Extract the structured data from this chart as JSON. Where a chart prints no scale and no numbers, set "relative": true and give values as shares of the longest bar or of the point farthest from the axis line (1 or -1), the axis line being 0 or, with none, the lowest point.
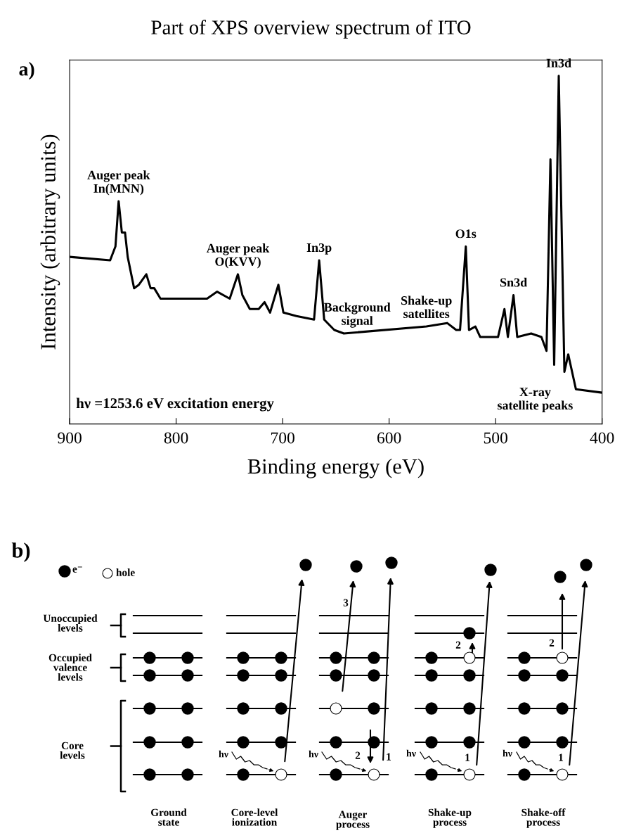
{
  "chart_data": [
    {
      "type": "line",
      "title": "Part of XPS overview spectrum of ITO",
      "xlabel": "Binding energy (eV)",
      "ylabel": "Intensity (arbitrary units)",
      "relative": true,
      "color": "#000000",
      "xlim": [
        900,
        400
      ],
      "xticks": [
        900,
        800,
        700,
        600,
        500,
        400
      ],
      "x": [
        900,
        862,
        857,
        854,
        851,
        848,
        845.5,
        839.5,
        835,
        828,
        824,
        820.6,
        814.7,
        784,
        771,
        761.5,
        749.7,
        742,
        737.8,
        730.8,
        722.5,
        717,
        711.8,
        704,
        699.3,
        687,
        670.5,
        665.7,
        661,
        651.5,
        642.5,
        565,
        545.5,
        537,
        533.4,
        528,
        525,
        519,
        514.5,
        497.7,
        491.7,
        488.5,
        483.2,
        479.7,
        466.6,
        457,
        452.2,
        448.5,
        445,
        440.7,
        435.4,
        431.8,
        424.6,
        400
      ],
      "values": [
        0.48,
        0.47,
        0.51,
        0.64,
        0.55,
        0.55,
        0.48,
        0.39,
        0.4,
        0.43,
        0.39,
        0.39,
        0.36,
        0.36,
        0.36,
        0.38,
        0.36,
        0.43,
        0.37,
        0.33,
        0.33,
        0.35,
        0.32,
        0.4,
        0.32,
        0.31,
        0.3,
        0.47,
        0.3,
        0.27,
        0.26,
        0.28,
        0.29,
        0.27,
        0.27,
        0.51,
        0.27,
        0.28,
        0.25,
        0.25,
        0.33,
        0.25,
        0.37,
        0.25,
        0.26,
        0.25,
        0.21,
        0.76,
        0.17,
        1.0,
        0.15,
        0.2,
        0.1,
        0.09
      ],
      "annotations": [
        "a)",
        "hν =1253.6 eV excitation energy",
        {
          "text": "Auger peak\nIn(MNN)",
          "x": 854,
          "y": 0.64
        },
        {
          "text": "Auger peak\nO(KVV)",
          "x": 742,
          "y": 0.43
        },
        {
          "text": "In3p",
          "x": 665.7,
          "y": 0.47
        },
        {
          "text": "Background\nsignal",
          "x": 630,
          "y": 0.26
        },
        {
          "text": "Shake-up\nsatellites",
          "x": 565,
          "y": 0.28
        },
        {
          "text": "O1s",
          "x": 528,
          "y": 0.51
        },
        {
          "text": "Sn3d",
          "x": 483.2,
          "y": 0.37
        },
        {
          "text": "In3d",
          "x": 440.7,
          "y": 1.0
        },
        {
          "text": "X-ray\nsatellite peaks",
          "x": 435.4,
          "y": 0.15
        }
      ]
    },
    {
      "type": "other",
      "annotations": [
        "b)",
        "e⁻",
        "hole",
        "Unoccupied\nlevels",
        "Occupied\nvalence\nlevels",
        "Core\nlevels",
        "Ground\nstate",
        "Core-level\nionization",
        "Auger\nprocess",
        "Shake-up\nprocess",
        "Shake-off\nprocess",
        "hν",
        "hν",
        "hν",
        "hν",
        "3",
        "2",
        "1",
        "2",
        "1",
        "2",
        "1"
      ]
    }
  ]
}
